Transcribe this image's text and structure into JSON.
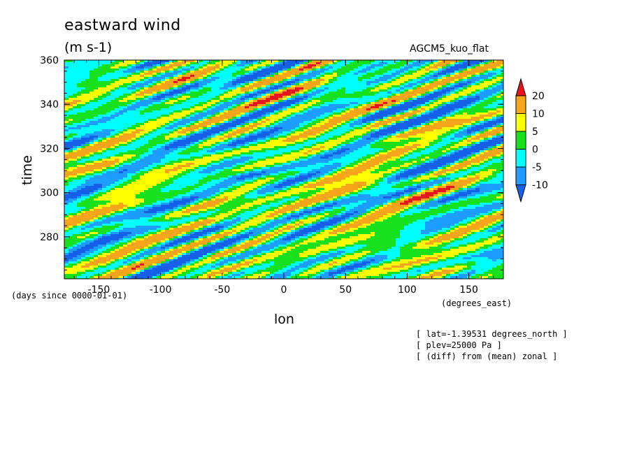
{
  "chart_data": {
    "type": "heatmap",
    "title": "eastward wind",
    "units": "(m s-1)",
    "model_label": "AGCM5_kuo_flat",
    "xlabel": "lon",
    "xunits": "(degrees_east)",
    "ylabel": "time",
    "yunits": "(days since 0000-01-01)",
    "xlim": [
      -178,
      178
    ],
    "ylim": [
      261,
      360
    ],
    "xticks": [
      -150,
      -100,
      -50,
      0,
      50,
      100,
      150
    ],
    "yticks": [
      280,
      300,
      320,
      340,
      360
    ],
    "xtick_labels": [
      "-150",
      "-100",
      "-50",
      "0",
      "50",
      "100",
      "150"
    ],
    "ytick_labels": [
      "280",
      "300",
      "320",
      "340",
      "360"
    ],
    "colorbar": {
      "levels": [
        "20",
        "10",
        "5",
        "0",
        "-5",
        "-10"
      ],
      "colors": [
        "#e8151d",
        "#f7a51a",
        "#ffff00",
        "#17e01d",
        "#00ffff",
        "#1d9dff",
        "#1560e8"
      ]
    },
    "notes": [
      "[ lat=-1.39531 degrees_north ]",
      "[ plev=25000 Pa ]",
      "[ (diff) from (mean) zonal ]"
    ]
  }
}
